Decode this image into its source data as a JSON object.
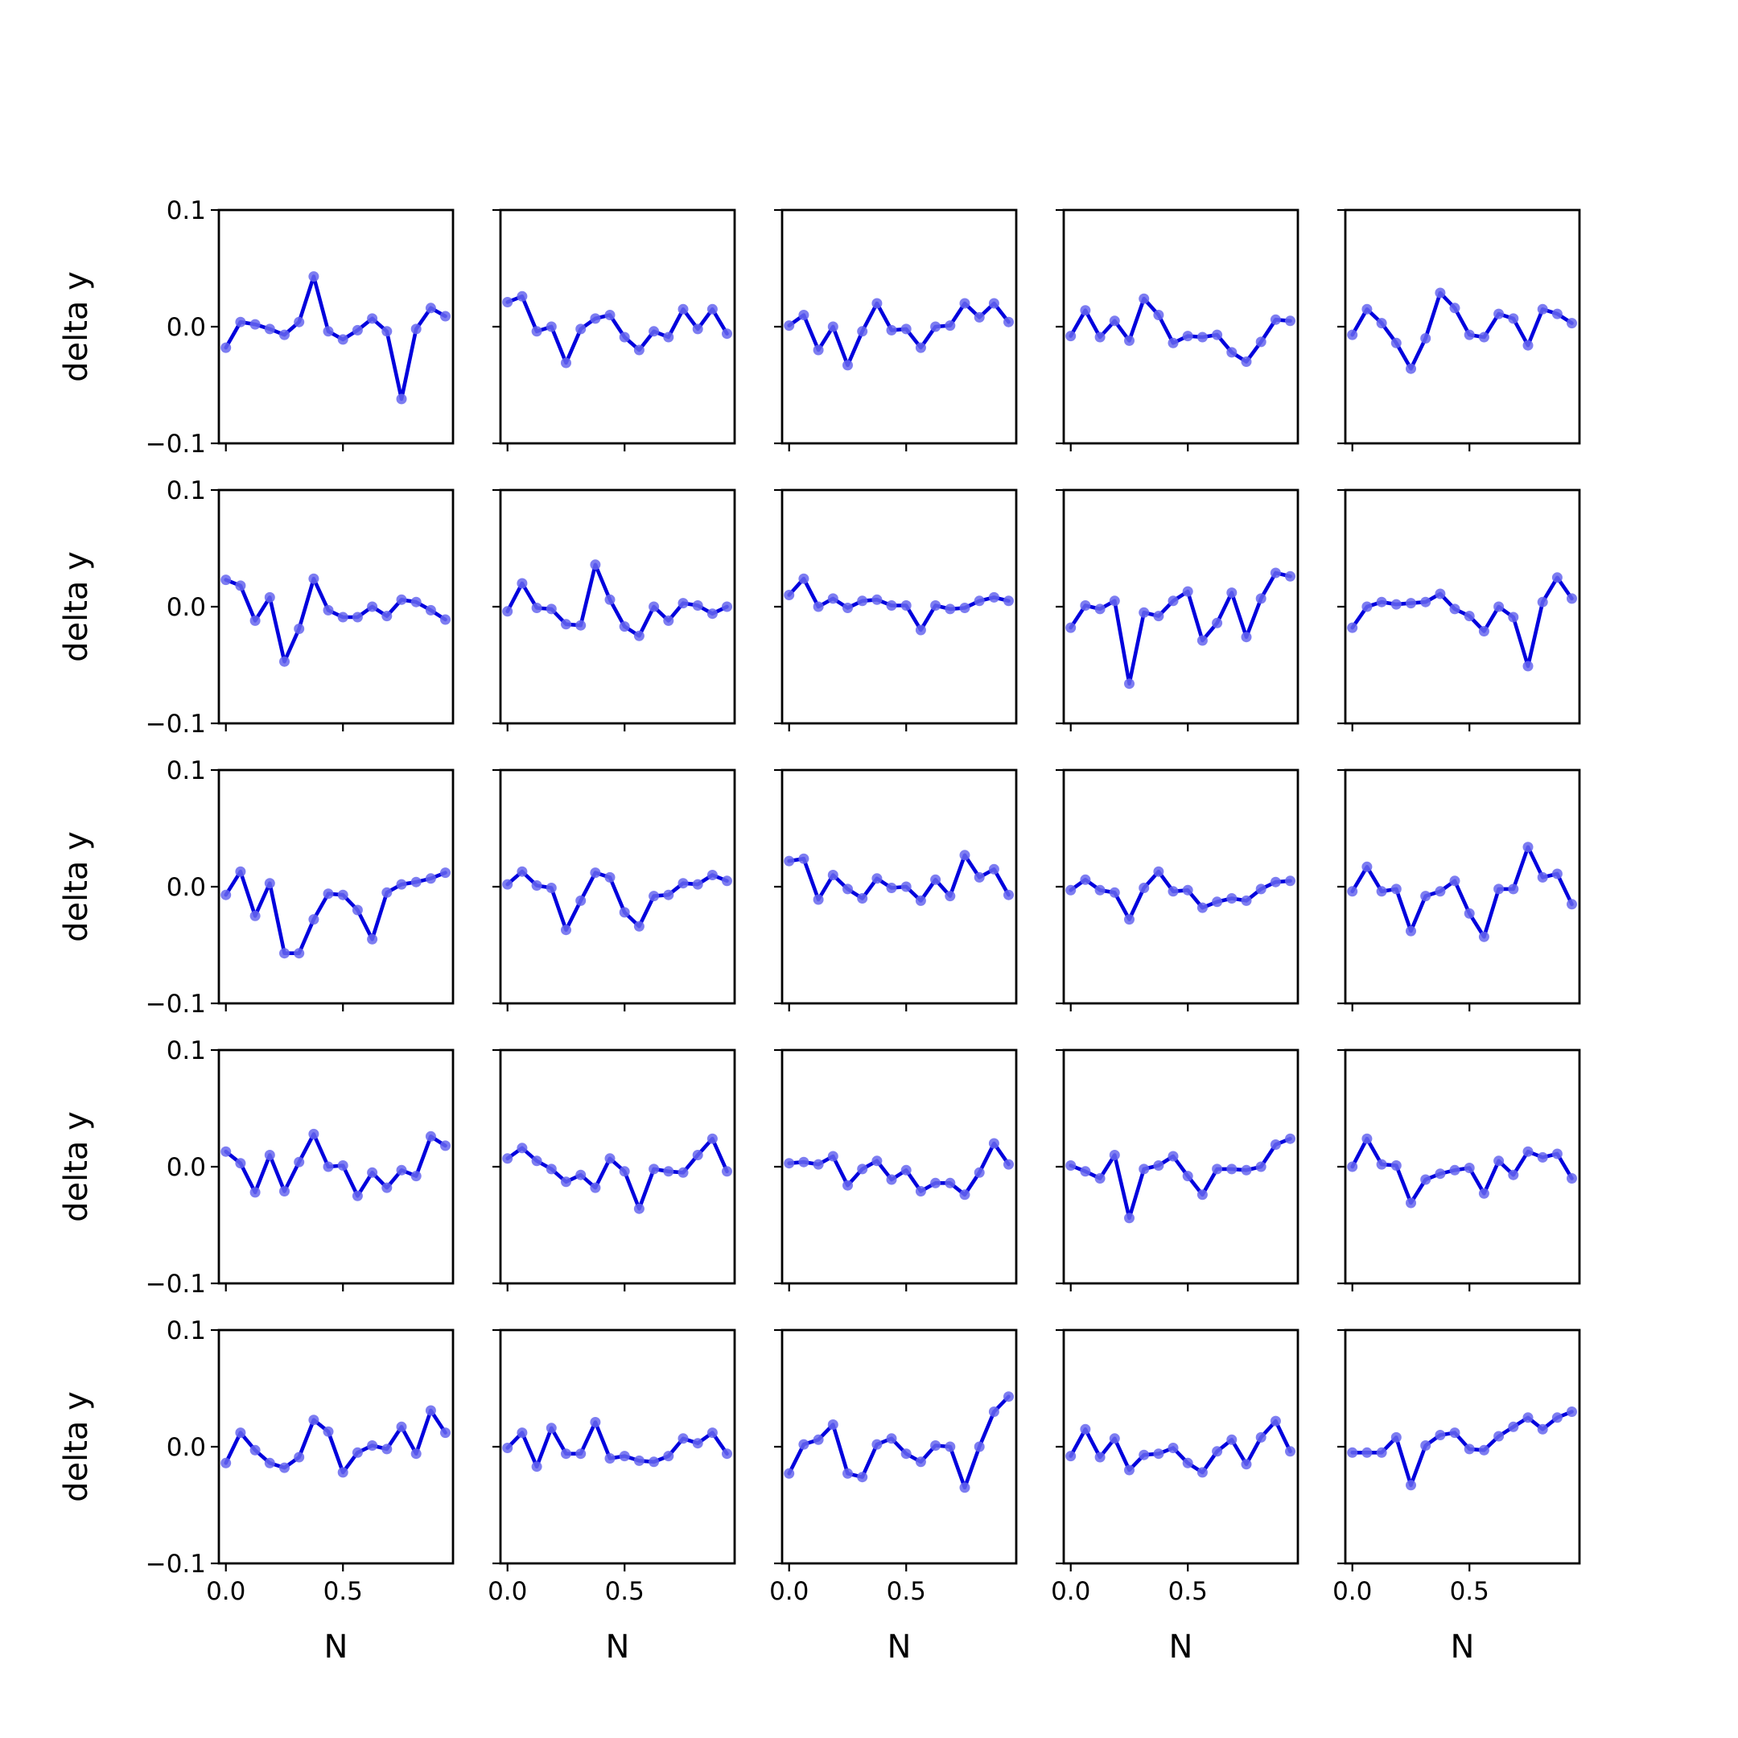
{
  "chart_data": {
    "type": "line",
    "layout": {
      "rows": 5,
      "cols": 5,
      "sharex": true,
      "sharey": true
    },
    "xlabel": "N",
    "ylabel": "delta y",
    "xlim": [
      -0.03,
      0.97
    ],
    "ylim": [
      -0.1,
      0.1
    ],
    "xticks": [
      0.0,
      0.5
    ],
    "xtick_labels": [
      "0.0",
      "0.5"
    ],
    "yticks": [
      0.1,
      0.0,
      -0.1
    ],
    "ytick_labels": [
      "0.1",
      "0.0",
      "−0.1"
    ],
    "x": [
      0.0,
      0.0625,
      0.125,
      0.1875,
      0.25,
      0.3125,
      0.375,
      0.4375,
      0.5,
      0.5625,
      0.625,
      0.6875,
      0.75,
      0.8125,
      0.875,
      0.9375
    ],
    "line_color": "#0000dd",
    "marker_color": "#6666ee",
    "panels": [
      {
        "values": [
          -0.018,
          0.004,
          0.002,
          -0.002,
          -0.007,
          0.004,
          0.043,
          -0.004,
          -0.011,
          -0.003,
          0.007,
          -0.004,
          -0.062,
          -0.002,
          0.016,
          0.009
        ]
      },
      {
        "values": [
          0.021,
          0.026,
          -0.004,
          0.0,
          -0.031,
          -0.002,
          0.007,
          0.01,
          -0.009,
          -0.02,
          -0.004,
          -0.009,
          0.015,
          -0.002,
          0.015,
          -0.006
        ]
      },
      {
        "values": [
          0.001,
          0.01,
          -0.02,
          0.0,
          -0.033,
          -0.004,
          0.02,
          -0.003,
          -0.002,
          -0.018,
          0.0,
          0.001,
          0.02,
          0.008,
          0.02,
          0.004
        ]
      },
      {
        "values": [
          -0.008,
          0.014,
          -0.009,
          0.005,
          -0.012,
          0.024,
          0.01,
          -0.014,
          -0.008,
          -0.009,
          -0.007,
          -0.022,
          -0.03,
          -0.013,
          0.006,
          0.005
        ]
      },
      {
        "values": [
          -0.007,
          0.015,
          0.003,
          -0.014,
          -0.036,
          -0.01,
          0.029,
          0.016,
          -0.007,
          -0.009,
          0.011,
          0.007,
          -0.016,
          0.015,
          0.011,
          0.003
        ]
      },
      {
        "values": [
          0.023,
          0.018,
          -0.012,
          0.008,
          -0.047,
          -0.019,
          0.024,
          -0.003,
          -0.009,
          -0.009,
          0.0,
          -0.008,
          0.006,
          0.004,
          -0.003,
          -0.011
        ]
      },
      {
        "values": [
          -0.004,
          0.02,
          -0.001,
          -0.002,
          -0.015,
          -0.016,
          0.036,
          0.006,
          -0.017,
          -0.025,
          0.0,
          -0.012,
          0.003,
          0.001,
          -0.006,
          0.0
        ]
      },
      {
        "values": [
          0.01,
          0.024,
          0.0,
          0.007,
          -0.001,
          0.005,
          0.006,
          0.001,
          0.001,
          -0.02,
          0.001,
          -0.002,
          -0.001,
          0.005,
          0.008,
          0.005
        ]
      },
      {
        "values": [
          -0.018,
          0.001,
          -0.002,
          0.005,
          -0.066,
          -0.005,
          -0.008,
          0.005,
          0.013,
          -0.029,
          -0.014,
          0.012,
          -0.026,
          0.007,
          0.029,
          0.026
        ]
      },
      {
        "values": [
          -0.018,
          0.0,
          0.004,
          0.002,
          0.003,
          0.004,
          0.011,
          -0.002,
          -0.008,
          -0.021,
          0.0,
          -0.009,
          -0.051,
          0.004,
          0.025,
          0.007
        ]
      },
      {
        "values": [
          -0.007,
          0.013,
          -0.025,
          0.003,
          -0.057,
          -0.057,
          -0.028,
          -0.006,
          -0.007,
          -0.02,
          -0.045,
          -0.005,
          0.002,
          0.004,
          0.007,
          0.012
        ]
      },
      {
        "values": [
          0.002,
          0.013,
          0.001,
          -0.001,
          -0.037,
          -0.012,
          0.012,
          0.008,
          -0.022,
          -0.034,
          -0.008,
          -0.007,
          0.003,
          0.002,
          0.01,
          0.005
        ]
      },
      {
        "values": [
          0.022,
          0.024,
          -0.011,
          0.01,
          -0.002,
          -0.01,
          0.007,
          -0.001,
          0.0,
          -0.012,
          0.006,
          -0.008,
          0.027,
          0.008,
          0.015,
          -0.007
        ]
      },
      {
        "values": [
          -0.003,
          0.006,
          -0.003,
          -0.005,
          -0.028,
          -0.001,
          0.013,
          -0.004,
          -0.003,
          -0.018,
          -0.013,
          -0.01,
          -0.012,
          -0.002,
          0.004,
          0.005
        ]
      },
      {
        "values": [
          -0.004,
          0.017,
          -0.004,
          -0.002,
          -0.038,
          -0.008,
          -0.004,
          0.005,
          -0.023,
          -0.043,
          -0.002,
          -0.002,
          0.034,
          0.008,
          0.011,
          -0.015
        ]
      },
      {
        "values": [
          0.013,
          0.003,
          -0.022,
          0.01,
          -0.021,
          0.004,
          0.028,
          0.0,
          0.001,
          -0.025,
          -0.005,
          -0.018,
          -0.003,
          -0.008,
          0.026,
          0.018
        ]
      },
      {
        "values": [
          0.007,
          0.016,
          0.005,
          -0.002,
          -0.013,
          -0.007,
          -0.018,
          0.007,
          -0.004,
          -0.036,
          -0.002,
          -0.004,
          -0.005,
          0.01,
          0.024,
          -0.004
        ]
      },
      {
        "values": [
          0.003,
          0.004,
          0.002,
          0.009,
          -0.016,
          -0.002,
          0.005,
          -0.011,
          -0.003,
          -0.021,
          -0.014,
          -0.014,
          -0.024,
          -0.005,
          0.02,
          0.002
        ]
      },
      {
        "values": [
          0.001,
          -0.004,
          -0.01,
          0.01,
          -0.044,
          -0.002,
          0.001,
          0.009,
          -0.008,
          -0.024,
          -0.002,
          -0.002,
          -0.003,
          0.0,
          0.019,
          0.024
        ]
      },
      {
        "values": [
          0.0,
          0.024,
          0.002,
          0.001,
          -0.031,
          -0.011,
          -0.006,
          -0.003,
          -0.001,
          -0.023,
          0.005,
          -0.007,
          0.013,
          0.008,
          0.011,
          -0.01
        ]
      },
      {
        "values": [
          -0.014,
          0.012,
          -0.003,
          -0.014,
          -0.018,
          -0.009,
          0.023,
          0.013,
          -0.022,
          -0.005,
          0.001,
          -0.002,
          0.017,
          -0.006,
          0.031,
          0.012
        ]
      },
      {
        "values": [
          -0.001,
          0.012,
          -0.017,
          0.016,
          -0.006,
          -0.006,
          0.021,
          -0.01,
          -0.008,
          -0.012,
          -0.013,
          -0.008,
          0.007,
          0.003,
          0.012,
          -0.006
        ]
      },
      {
        "values": [
          -0.023,
          0.002,
          0.006,
          0.019,
          -0.023,
          -0.026,
          0.002,
          0.007,
          -0.006,
          -0.013,
          0.001,
          0.0,
          -0.035,
          0.0,
          0.03,
          0.043
        ]
      },
      {
        "values": [
          -0.008,
          0.015,
          -0.009,
          0.007,
          -0.02,
          -0.007,
          -0.006,
          -0.001,
          -0.014,
          -0.022,
          -0.004,
          0.006,
          -0.015,
          0.008,
          0.022,
          -0.004
        ]
      },
      {
        "values": [
          -0.005,
          -0.005,
          -0.005,
          0.008,
          -0.033,
          0.001,
          0.01,
          0.012,
          -0.002,
          -0.003,
          0.009,
          0.017,
          0.025,
          0.015,
          0.025,
          0.03
        ]
      }
    ]
  }
}
